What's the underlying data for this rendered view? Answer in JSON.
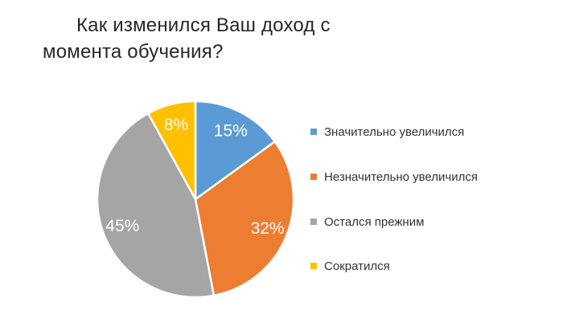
{
  "title": {
    "lines": [
      "Как изменился Ваш доход с",
      "момента обучения?"
    ]
  },
  "colors": {
    "background": "#ffffff",
    "title_text": "#262626",
    "legend_text": "#333333",
    "percent_label_text": "#ffffff",
    "slice_border": "#ffffff"
  },
  "chart_data": {
    "type": "pie",
    "title": "Как изменился Ваш доход с момента обучения?",
    "legend_position": "right",
    "start_angle_deg": 0,
    "direction": "clockwise",
    "slices": [
      {
        "label": "Значительно увеличился",
        "value": 15,
        "pct_label": "15%",
        "color": "#5B9BD5"
      },
      {
        "label": "Незначительно увеличился",
        "value": 32,
        "pct_label": "32%",
        "color": "#ED7D31"
      },
      {
        "label": "Остался прежним",
        "value": 45,
        "pct_label": "45%",
        "color": "#A5A5A5"
      },
      {
        "label": "Сократился",
        "value": 8,
        "pct_label": "8%",
        "color": "#FFC000"
      }
    ]
  }
}
